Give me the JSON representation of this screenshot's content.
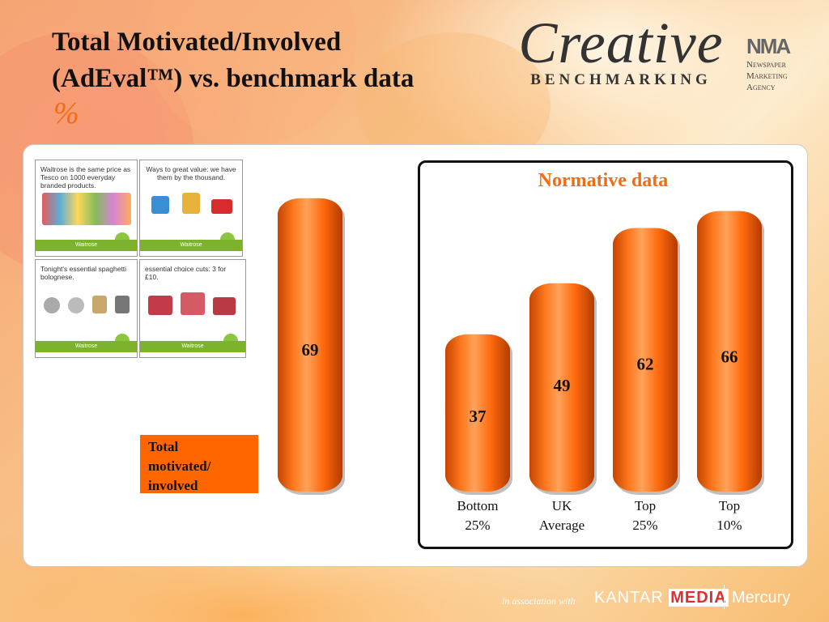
{
  "slide": {
    "title_line1": "Total Motivated/Involved",
    "title_line2": "(AdEval™) vs. benchmark data",
    "unit": "%",
    "logo_word": "Creative",
    "logo_sub": "BENCHMARKING",
    "nma_mark": "NMA",
    "nma_line1": "Newspaper",
    "nma_line2": "Marketing",
    "nma_line3": "Agency",
    "legend_label": "Total\nmotivated/\ninvolved",
    "normative_title": "Normative data",
    "footer_assoc": "in association with",
    "footer_kantar": "KANTAR",
    "footer_media": "MEDIA",
    "footer_mercury": "Mercury"
  },
  "ads": [
    {
      "headline": "Waitrose is the same price as Tesco on 1000 everyday branded products.",
      "brand": "Waitrose"
    },
    {
      "headline": "Ways to great value: we have them by the thousand.",
      "brand": "Waitrose"
    },
    {
      "headline": "Tonight's essential spaghetti bolognese.",
      "brand": "Waitrose"
    },
    {
      "headline": "essential choice cuts: 3 for £10.",
      "brand": "Waitrose"
    }
  ],
  "colors": {
    "bar": "#ff6a0d",
    "accent": "#f36b12",
    "ad_footer": "#7cb22c"
  },
  "chart_data": [
    {
      "type": "bar",
      "title": "",
      "categories": [
        ""
      ],
      "values": [
        69
      ],
      "series_name": "Total motivated/involved"
    },
    {
      "type": "bar",
      "title": "Normative data",
      "categories": [
        "Bottom 25%",
        "UK Average",
        "Top 25%",
        "Top 10%"
      ],
      "category_lines": [
        [
          "Bottom",
          "25%"
        ],
        [
          "UK",
          "Average"
        ],
        [
          "Top",
          "25%"
        ],
        [
          "Top",
          "10%"
        ]
      ],
      "values": [
        37,
        49,
        62,
        66
      ]
    }
  ]
}
